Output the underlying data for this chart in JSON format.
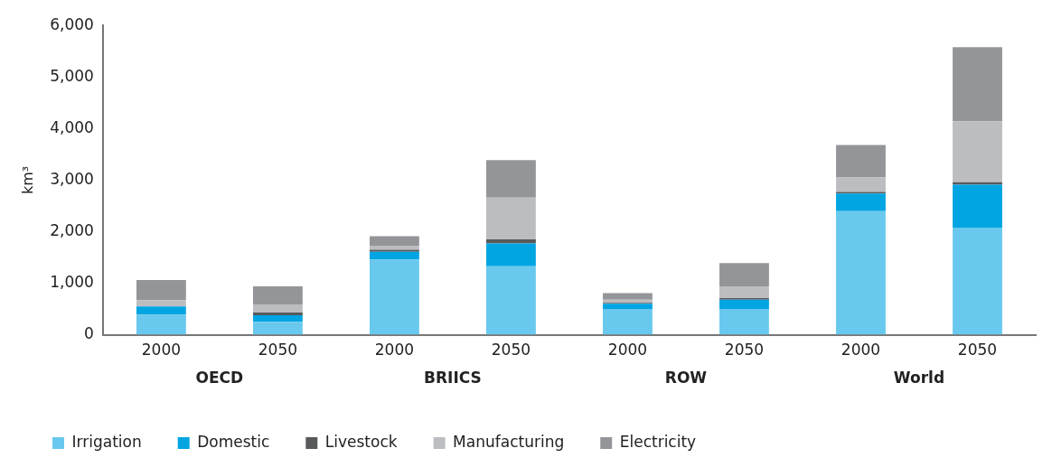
{
  "chart_data": {
    "type": "bar",
    "stacked": true,
    "ylabel": "km³",
    "categories": [
      "2000",
      "2050",
      "2000",
      "2050",
      "2000",
      "2050",
      "2000",
      "2050"
    ],
    "annotations": [
      "OECD",
      "BRIICS",
      "ROW",
      "World"
    ],
    "series": [
      {
        "name": "Irrigation",
        "color": "#69c8ee",
        "values": [
          390,
          250,
          1460,
          1330,
          500,
          500,
          2400,
          2080
        ]
      },
      {
        "name": "Domestic",
        "color": "#00a5e2",
        "values": [
          160,
          130,
          150,
          440,
          100,
          180,
          340,
          830
        ]
      },
      {
        "name": "Livestock",
        "color": "#58595b",
        "values": [
          null,
          50,
          40,
          80,
          20,
          30,
          30,
          50
        ]
      },
      {
        "name": "Manufacturing",
        "color": "#bcbdc1",
        "values": [
          120,
          160,
          80,
          810,
          60,
          230,
          280,
          1180
        ]
      },
      {
        "name": "Electricity",
        "color": "#949598",
        "values": [
          390,
          350,
          180,
          730,
          130,
          450,
          630,
          1440
        ]
      }
    ],
    "ylim": [
      0,
      6000
    ],
    "yticks": [
      0,
      {
        "value": 1000,
        "label": "1,000"
      },
      {
        "value": 2000,
        "label": "2,000"
      },
      {
        "value": 3000,
        "label": "3,000"
      },
      {
        "value": 4000,
        "label": "4,000"
      },
      {
        "value": 5000,
        "label": "5,000"
      },
      {
        "value": 6000,
        "label": "6,000"
      }
    ],
    "grid": false,
    "legend": "bottom left"
  }
}
